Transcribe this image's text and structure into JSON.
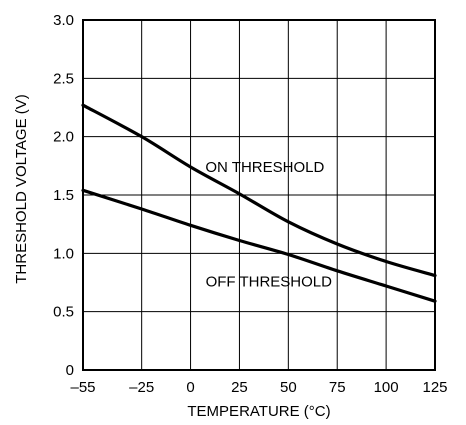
{
  "chart_data": {
    "type": "line",
    "title": "",
    "xlabel": "TEMPERATURE (°C)",
    "ylabel": "THRESHOLD VOLTAGE (V)",
    "xlim": [
      -55,
      125
    ],
    "ylim": [
      0,
      3.0
    ],
    "xticks": [
      -55,
      -25,
      0,
      25,
      50,
      75,
      100,
      125
    ],
    "xtick_labels": [
      "–55",
      "–25",
      "0",
      "25",
      "50",
      "75",
      "100",
      "125"
    ],
    "yticks": [
      0,
      0.5,
      1.0,
      1.5,
      2.0,
      2.5,
      3.0
    ],
    "ytick_labels": [
      "0",
      "0.5",
      "1.0",
      "1.5",
      "2.0",
      "2.5",
      "3.0"
    ],
    "grid": true,
    "legend": "none",
    "series": [
      {
        "name": "ON THRESHOLD",
        "x": [
          -55,
          -25,
          0,
          25,
          50,
          75,
          100,
          125
        ],
        "y": [
          2.27,
          2.0,
          1.74,
          1.51,
          1.27,
          1.08,
          0.93,
          0.81
        ]
      },
      {
        "name": "OFF THRESHOLD",
        "x": [
          -55,
          -25,
          0,
          25,
          50,
          75,
          100,
          125
        ],
        "y": [
          1.54,
          1.38,
          1.24,
          1.11,
          0.99,
          0.85,
          0.72,
          0.59
        ]
      }
    ],
    "annotations": [
      {
        "text": "ON THRESHOLD",
        "series": 0
      },
      {
        "text": "OFF THRESHOLD",
        "series": 1
      }
    ]
  }
}
